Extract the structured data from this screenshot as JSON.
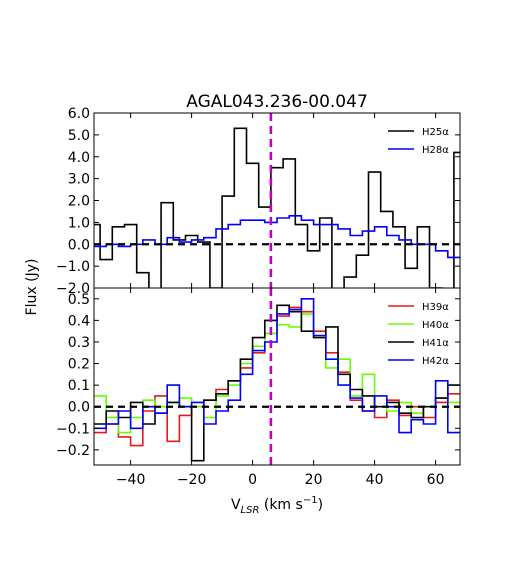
{
  "chart_data": [
    {
      "type": "line",
      "title": "AGAL043.236-00.047",
      "ylabel": "Flux (Jy)",
      "xlim": [
        -52,
        68
      ],
      "ylim": [
        -2.0,
        6.0
      ],
      "yticks": [
        "6.0",
        "5.0",
        "4.0",
        "3.0",
        "2.0",
        "1.0",
        "0.0",
        "−1.0",
        "−2.0"
      ],
      "ytick_values": [
        6,
        5,
        4,
        3,
        2,
        1,
        0,
        -1,
        -2
      ],
      "legend": "top-right",
      "reference_line_x": 6,
      "reference_line_color": "#bf00bf",
      "zero_line": true,
      "series": [
        {
          "name": "H25α",
          "color": "#000000",
          "step": true,
          "x": [
            -52,
            -50,
            -46,
            -42,
            -38,
            -34,
            -30,
            -26,
            -22,
            -18,
            -14,
            -10,
            -6,
            -2,
            2,
            6,
            10,
            14,
            18,
            22,
            26,
            30,
            34,
            38,
            42,
            46,
            50,
            54,
            58,
            62,
            66
          ],
          "y": [
            0.9,
            -0.7,
            0.8,
            0.9,
            -1.3,
            -2.5,
            1.9,
            0.2,
            0.4,
            0.1,
            -2.0,
            2.2,
            5.3,
            3.7,
            1.7,
            3.5,
            3.9,
            0.9,
            -0.3,
            1.2,
            -2.8,
            -1.5,
            -0.5,
            3.3,
            1.5,
            0.8,
            -1.1,
            0.8,
            -2.0,
            -2.5,
            4.2
          ]
        },
        {
          "name": "H28α",
          "color": "#0000ff",
          "step": true,
          "x": [
            -52,
            -48,
            -44,
            -40,
            -36,
            -32,
            -28,
            -24,
            -20,
            -16,
            -12,
            -8,
            -4,
            0,
            4,
            8,
            12,
            16,
            20,
            24,
            28,
            32,
            36,
            40,
            44,
            48,
            52,
            56,
            60,
            64
          ],
          "y": [
            -0.1,
            0.0,
            -0.1,
            0.0,
            0.2,
            0.0,
            0.3,
            0.1,
            0.2,
            0.3,
            0.7,
            0.9,
            1.1,
            1.1,
            1.0,
            1.2,
            1.3,
            1.1,
            0.9,
            0.9,
            0.7,
            0.4,
            0.6,
            0.8,
            0.4,
            0.2,
            0.0,
            0.0,
            -0.3,
            -0.6
          ]
        }
      ]
    },
    {
      "type": "line",
      "xlabel": "V",
      "xlabel_sub": "LSR",
      "xlabel_unit_open": " (km s",
      "xlabel_exp": "−1",
      "xlabel_unit_close": ")",
      "xlim": [
        -52,
        68
      ],
      "ylim": [
        -0.27,
        0.55
      ],
      "xticks": [
        "−40",
        "−20",
        "0",
        "20",
        "40",
        "60"
      ],
      "xtick_values": [
        -40,
        -20,
        0,
        20,
        40,
        60
      ],
      "yticks": [
        "0.5",
        "0.4",
        "0.3",
        "0.2",
        "0.1",
        "0.0",
        "−0.1",
        "−0.2"
      ],
      "ytick_values": [
        0.5,
        0.4,
        0.3,
        0.2,
        0.1,
        0,
        -0.1,
        -0.2
      ],
      "legend": "top-right",
      "reference_line_x": 6,
      "reference_line_color": "#bf00bf",
      "zero_line": true,
      "series": [
        {
          "name": "H39α",
          "color": "#e31a1c",
          "step": true,
          "x": [
            -52,
            -48,
            -44,
            -40,
            -36,
            -32,
            -28,
            -24,
            -20,
            -16,
            -12,
            -8,
            -4,
            0,
            4,
            8,
            12,
            16,
            20,
            24,
            28,
            32,
            36,
            40,
            44,
            48,
            52,
            56,
            60,
            64
          ],
          "y": [
            -0.12,
            -0.08,
            -0.14,
            -0.18,
            -0.02,
            0.05,
            -0.16,
            -0.04,
            0.0,
            0.03,
            0.08,
            0.12,
            0.18,
            0.25,
            0.34,
            0.42,
            0.46,
            0.44,
            0.35,
            0.25,
            0.16,
            0.03,
            -0.02,
            -0.05,
            0.03,
            -0.04,
            0.0,
            -0.05,
            0.02,
            0.06
          ]
        },
        {
          "name": "H40α",
          "color": "#66ff00",
          "step": true,
          "x": [
            -52,
            -48,
            -44,
            -40,
            -36,
            -32,
            -28,
            -24,
            -20,
            -16,
            -12,
            -8,
            -4,
            0,
            4,
            8,
            12,
            16,
            20,
            24,
            28,
            32,
            36,
            40,
            44,
            48,
            52,
            56,
            60,
            64
          ],
          "y": [
            0.05,
            -0.05,
            -0.12,
            -0.05,
            0.03,
            0.0,
            0.02,
            0.04,
            0.0,
            -0.05,
            0.05,
            0.1,
            0.2,
            0.28,
            0.34,
            0.38,
            0.37,
            0.43,
            0.32,
            0.18,
            0.22,
            0.05,
            0.15,
            0.0,
            -0.02,
            0.02,
            -0.03,
            0.0,
            0.04,
            0.02
          ]
        },
        {
          "name": "H41α",
          "color": "#000000",
          "step": true,
          "x": [
            -52,
            -48,
            -44,
            -40,
            -36,
            -32,
            -28,
            -24,
            -20,
            -16,
            -12,
            -8,
            -4,
            0,
            4,
            8,
            12,
            16,
            20,
            24,
            28,
            32,
            36,
            40,
            44,
            48,
            52,
            56,
            60,
            64
          ],
          "y": [
            -0.08,
            -0.02,
            -0.05,
            0.02,
            -0.08,
            -0.03,
            0.02,
            0.0,
            -0.25,
            0.03,
            0.06,
            0.12,
            0.22,
            0.32,
            0.4,
            0.47,
            0.44,
            0.35,
            0.32,
            0.37,
            0.15,
            0.08,
            0.05,
            0.0,
            0.02,
            -0.03,
            -0.05,
            0.0,
            0.04,
            0.1
          ]
        },
        {
          "name": "H42α",
          "color": "#0000ff",
          "step": true,
          "x": [
            -52,
            -48,
            -44,
            -40,
            -36,
            -32,
            -28,
            -24,
            -20,
            -16,
            -12,
            -8,
            -4,
            0,
            4,
            8,
            12,
            16,
            20,
            24,
            28,
            32,
            36,
            40,
            44,
            48,
            52,
            56,
            60,
            64
          ],
          "y": [
            -0.1,
            -0.08,
            -0.02,
            -0.1,
            0.0,
            -0.03,
            0.1,
            0.0,
            0.02,
            -0.08,
            -0.02,
            0.03,
            0.15,
            0.26,
            0.3,
            0.43,
            0.45,
            0.5,
            0.33,
            0.22,
            0.1,
            0.04,
            -0.02,
            0.05,
            0.0,
            -0.12,
            -0.06,
            -0.08,
            0.12,
            -0.12
          ]
        }
      ]
    }
  ]
}
